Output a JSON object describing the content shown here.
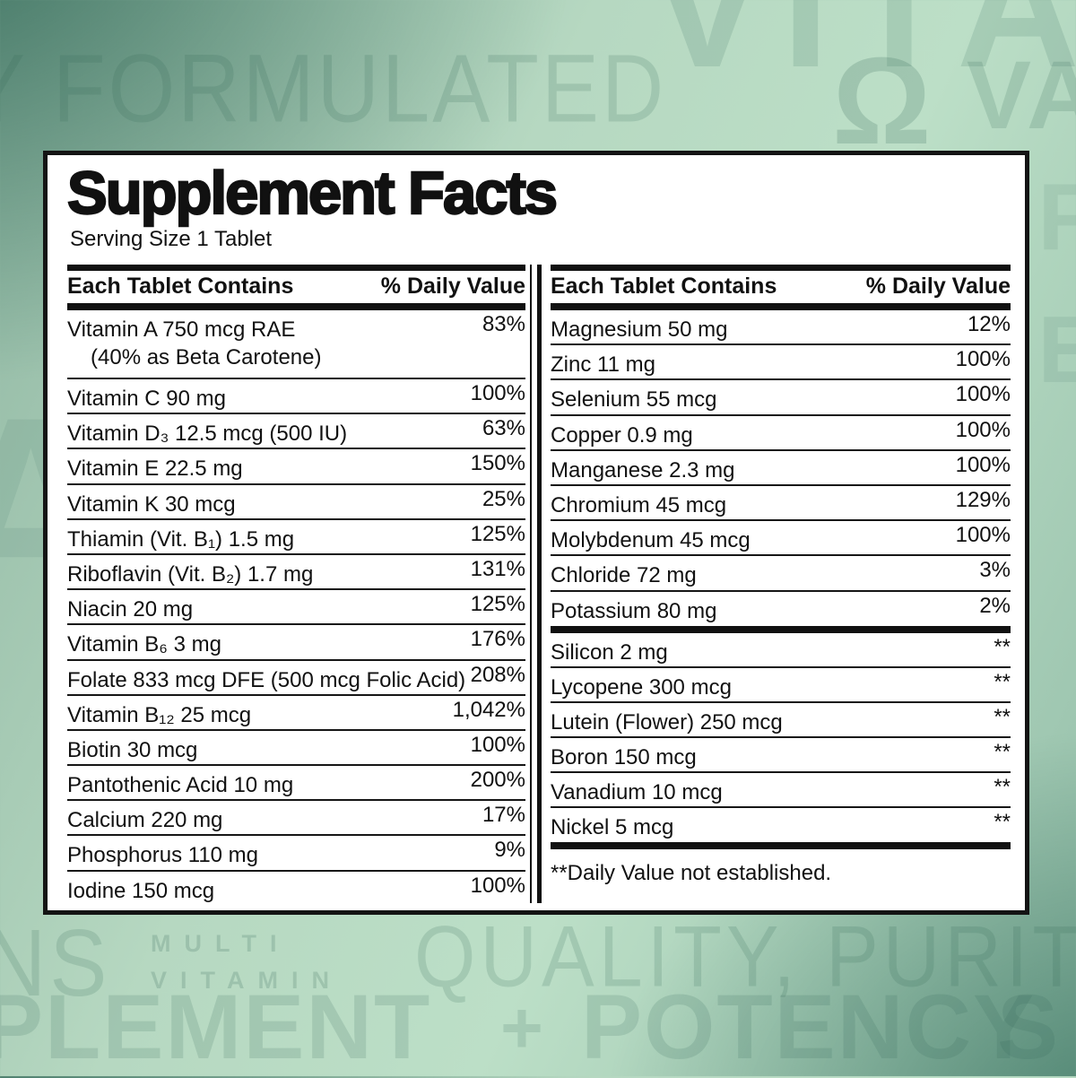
{
  "label": {
    "title": "Supplement Facts",
    "serving_size": "Serving Size 1 Tablet",
    "column_header": {
      "name": "Each Tablet Contains",
      "dv": "% Daily Value"
    },
    "left_rows": [
      {
        "name": "Vitamin A 750 mcg RAE",
        "name2": "(40% as Beta Carotene)",
        "dv": "83%"
      },
      {
        "name": "Vitamin C 90 mg",
        "dv": "100%"
      },
      {
        "name": "Vitamin D₃ 12.5 mcg (500 IU)",
        "dv": "63%"
      },
      {
        "name": "Vitamin E 22.5 mg",
        "dv": "150%"
      },
      {
        "name": "Vitamin K 30 mcg",
        "dv": "25%"
      },
      {
        "name": "Thiamin (Vit. B₁) 1.5 mg",
        "dv": "125%"
      },
      {
        "name": "Riboflavin (Vit. B₂) 1.7 mg",
        "dv": "131%"
      },
      {
        "name": "Niacin 20 mg",
        "dv": "125%"
      },
      {
        "name": "Vitamin B₆ 3 mg",
        "dv": "176%"
      },
      {
        "name": "Folate 833 mcg DFE (500 mcg Folic Acid)",
        "dv": "208%"
      },
      {
        "name": "Vitamin B₁₂ 25 mcg",
        "dv": "1,042%"
      },
      {
        "name": "Biotin 30 mcg",
        "dv": "100%"
      },
      {
        "name": "Pantothenic Acid 10 mg",
        "dv": "200%"
      },
      {
        "name": "Calcium 220 mg",
        "dv": "17%"
      },
      {
        "name": "Phosphorus 110 mg",
        "dv": "9%"
      },
      {
        "name": "Iodine 150 mcg",
        "dv": "100%"
      }
    ],
    "right_rows": [
      {
        "name": "Magnesium 50 mg",
        "dv": "12%"
      },
      {
        "name": "Zinc 11 mg",
        "dv": "100%"
      },
      {
        "name": "Selenium 55 mcg",
        "dv": "100%"
      },
      {
        "name": "Copper 0.9 mg",
        "dv": "100%"
      },
      {
        "name": "Manganese 2.3 mg",
        "dv": "100%"
      },
      {
        "name": "Chromium 45 mcg",
        "dv": "129%"
      },
      {
        "name": "Molybdenum  45 mcg",
        "dv": "100%"
      },
      {
        "name": "Chloride  72 mg",
        "dv": "3%"
      },
      {
        "name": "Potassium  80 mg",
        "dv": "2%",
        "bar_after": true
      },
      {
        "name": "Silicon  2 mg",
        "dv": "**"
      },
      {
        "name": "Lycopene  300 mcg",
        "dv": "**"
      },
      {
        "name": "Lutein (Flower)  250 mcg",
        "dv": "**"
      },
      {
        "name": "Boron  150 mcg",
        "dv": "**"
      },
      {
        "name": "Vanadium  10 mcg",
        "dv": "**"
      },
      {
        "name": "Nickel  5 mcg",
        "dv": "**",
        "bar_after": true
      }
    ],
    "footnote": "**Daily Value not established."
  },
  "background": {
    "watermarks": {
      "top_fragment": "VITA",
      "row2_left": "Y FORMULATED",
      "row2_icon_glyph": "Ω",
      "row2_right": "VA",
      "left_fragment": "A",
      "right_fragment": "F\nE",
      "bottom_ns": "NS",
      "multi_line1": "MULTI",
      "multi_line2": "VITAMIN",
      "quality": "QUALITY, PURITY",
      "plement": "PLEMENT",
      "plus": "+",
      "potency": "POTENCY",
      "s_fragment": "S"
    },
    "colors": {
      "background_light": "#b8dac3",
      "background_dark_top_left": "#4a7a6c",
      "background_dark_bottom_right": "#4e8473",
      "label_background": "#ffffff",
      "label_border": "#141414",
      "text": "#111111",
      "watermark": "#9fc2ad"
    }
  }
}
